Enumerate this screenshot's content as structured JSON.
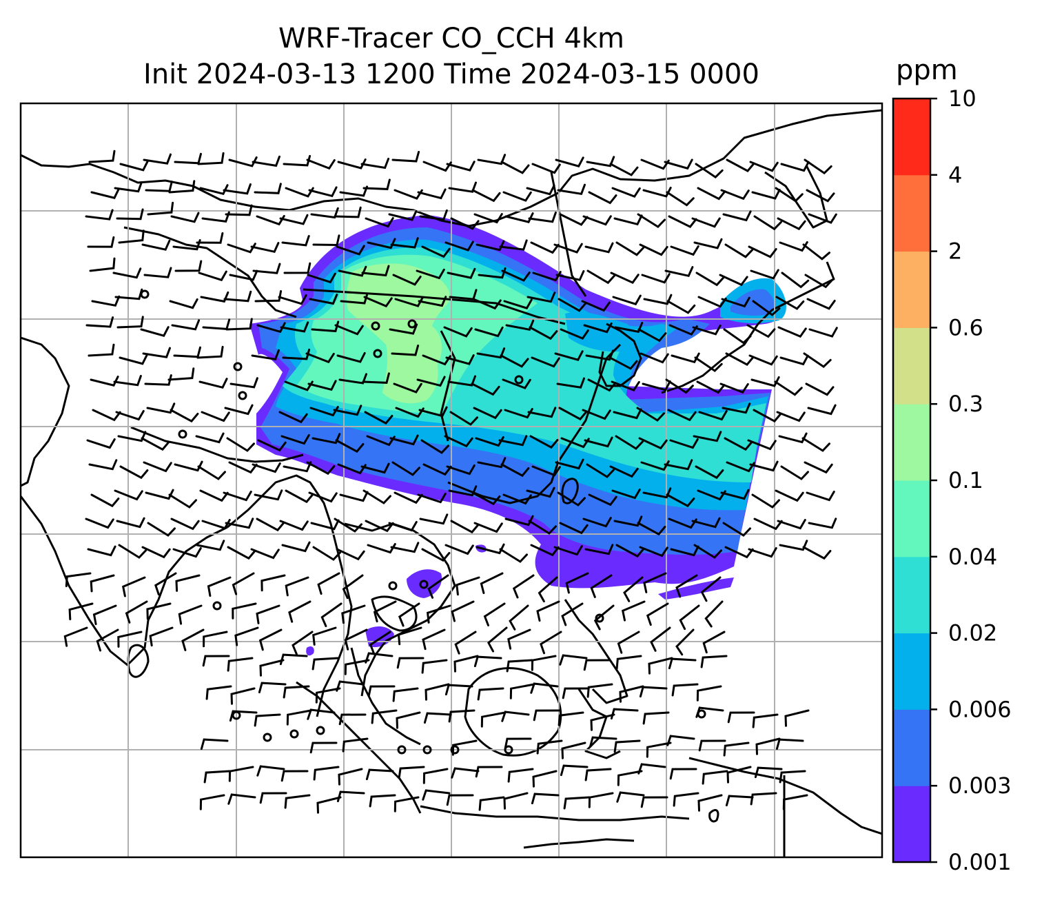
{
  "title": {
    "line1": "WRF-Tracer CO_CCH 4km",
    "line2": "Init 2024-03-13 1200 Time 2024-03-15 0000"
  },
  "colorbar": {
    "unit": "ppm",
    "levels": [
      "0.001",
      "0.003",
      "0.006",
      "0.02",
      "0.04",
      "0.1",
      "0.3",
      "0.6",
      "2",
      "4",
      "10"
    ],
    "colors": [
      "#6a2bff",
      "#3575f5",
      "#03b0ec",
      "#30dfd4",
      "#63f6bd",
      "#9df89f",
      "#d1e089",
      "#fdb062",
      "#ff6f3c",
      "#ff2a1a"
    ]
  },
  "chart_data": {
    "type": "heatmap",
    "variable": "CO_CCH tracer concentration",
    "unit": "ppm",
    "levels": [
      0.001,
      0.003,
      0.006,
      0.02,
      0.04,
      0.1,
      0.3,
      0.6,
      2,
      4,
      10
    ],
    "gridlines": true,
    "overlay": "wind barbs and coastlines"
  }
}
